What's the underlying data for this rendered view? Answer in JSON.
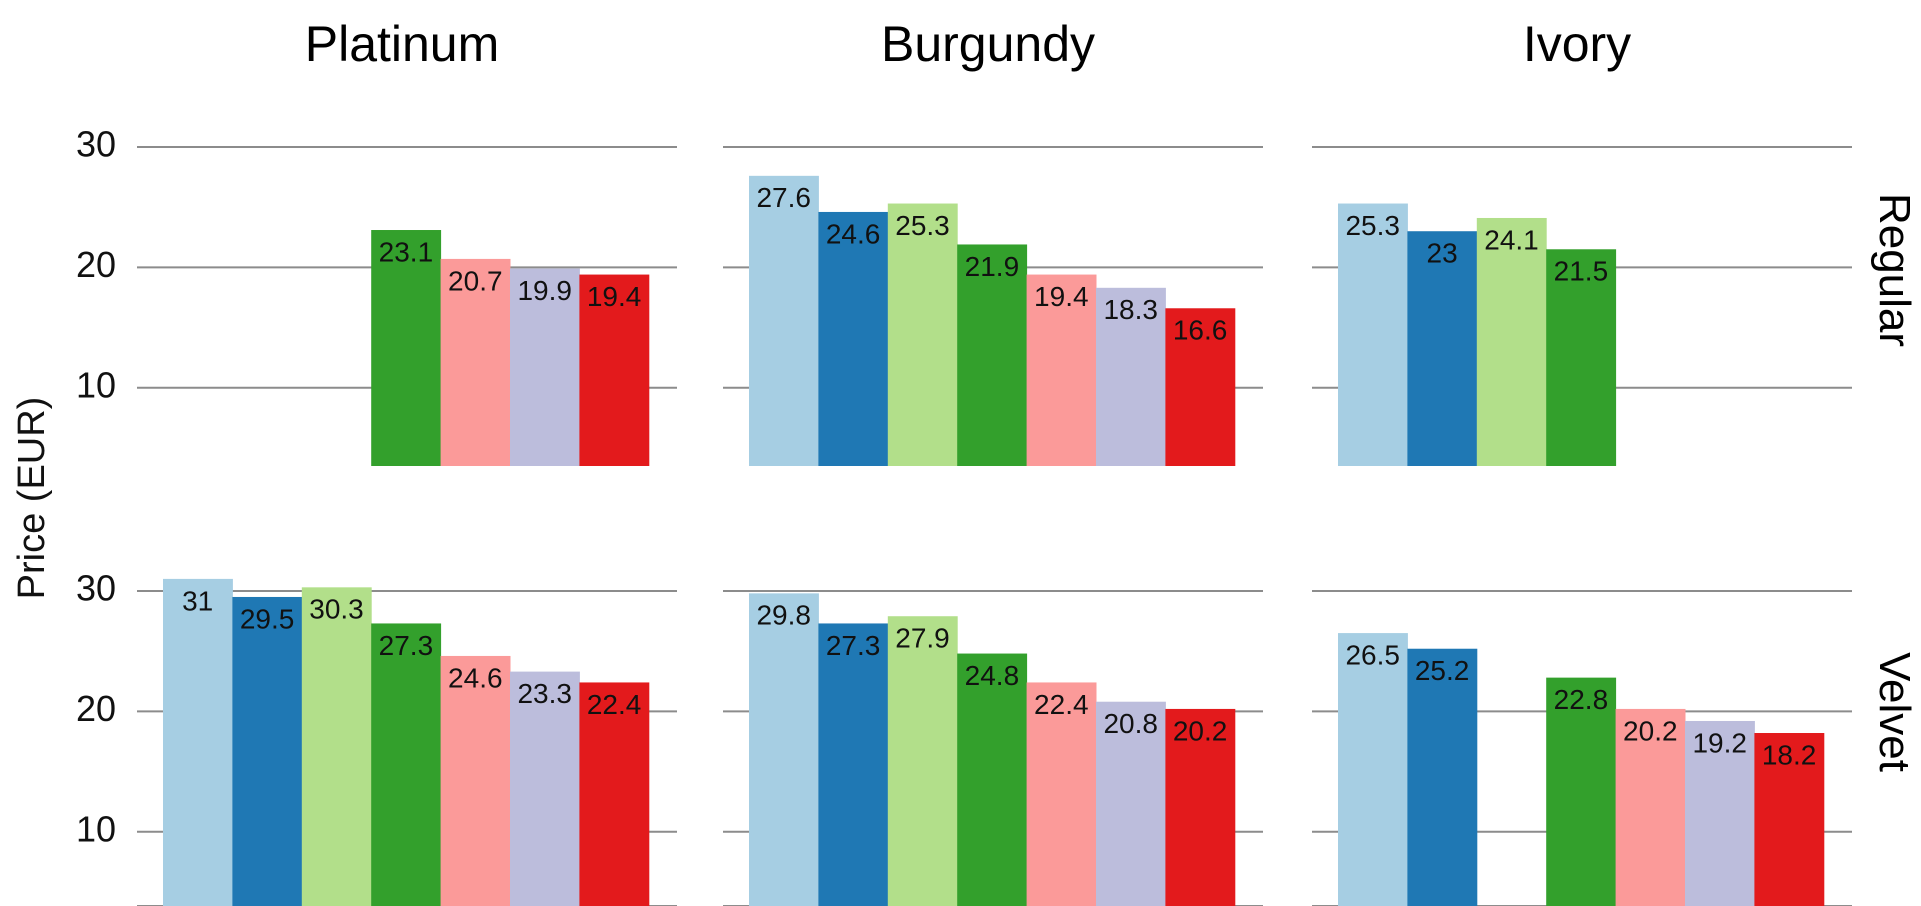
{
  "chart_data": {
    "type": "bar",
    "ylabel": "Price (EUR)",
    "yticks": [
      10,
      20,
      30
    ],
    "ylim": [
      3.5,
      32.5
    ],
    "grid": true,
    "columns": [
      "Platinum",
      "Burgundy",
      "Ivory"
    ],
    "rows": [
      "Regular",
      "Velvet"
    ],
    "series_colors": [
      "#a6cee3",
      "#1f78b4",
      "#b2df8a",
      "#33a02c",
      "#fb9a99",
      "#bcbddc",
      "#e31a1c"
    ],
    "panels": [
      {
        "column": "Platinum",
        "row": "Regular",
        "values": [
          null,
          null,
          null,
          23.1,
          20.7,
          19.9,
          19.4
        ]
      },
      {
        "column": "Burgundy",
        "row": "Regular",
        "values": [
          27.6,
          24.6,
          25.3,
          21.9,
          19.4,
          18.3,
          16.6
        ]
      },
      {
        "column": "Ivory",
        "row": "Regular",
        "values": [
          25.3,
          23,
          24.1,
          21.5,
          null,
          null,
          null
        ]
      },
      {
        "column": "Platinum",
        "row": "Velvet",
        "values": [
          31,
          29.5,
          30.3,
          27.3,
          24.6,
          23.3,
          22.4
        ]
      },
      {
        "column": "Burgundy",
        "row": "Velvet",
        "values": [
          29.8,
          27.3,
          27.9,
          24.8,
          22.4,
          20.8,
          20.2
        ]
      },
      {
        "column": "Ivory",
        "row": "Velvet",
        "values": [
          26.5,
          25.2,
          null,
          22.8,
          20.2,
          19.2,
          18.2
        ]
      }
    ]
  }
}
